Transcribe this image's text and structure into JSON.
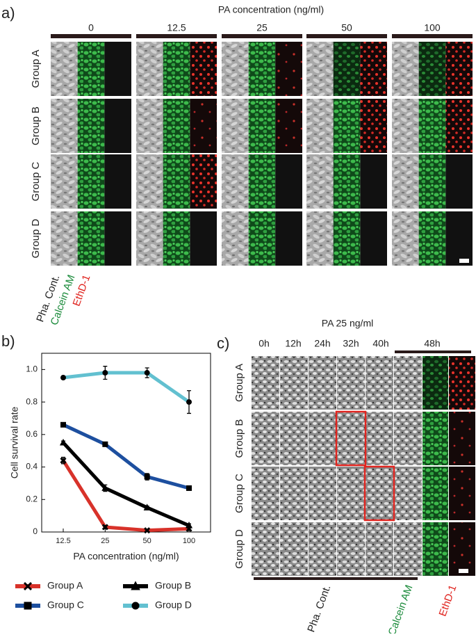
{
  "panel_a": {
    "label": "a)",
    "title": "PA concentration (ng/ml)",
    "columns": [
      "0",
      "12.5",
      "25",
      "50",
      "100"
    ],
    "rows": [
      "Group A",
      "Group B",
      "Group C",
      "Group D"
    ],
    "channels": [
      "Pha. Cont.",
      "Calcein AM",
      "EthD-1"
    ]
  },
  "chart_data": {
    "type": "line",
    "panel_label": "b)",
    "x_label": "PA concentration (ng/ml)",
    "y_label": "Cell survival rate",
    "categories": [
      "12.5",
      "25",
      "50",
      "100"
    ],
    "ylim": [
      0,
      1.1
    ],
    "yticks": [
      0,
      0.2,
      0.4,
      0.6,
      0.8,
      {
        "value": 1,
        "label": "1.0"
      }
    ],
    "series": [
      {
        "name": "Group A",
        "color": "#d8322a",
        "marker": "x",
        "values": [
          0.44,
          0.03,
          0.01,
          0.02
        ],
        "errors": [
          0.02,
          0.01,
          0.005,
          0.01
        ]
      },
      {
        "name": "Group B",
        "color": "#000000",
        "marker": "triangle",
        "values": [
          0.55,
          0.27,
          0.15,
          0.04
        ],
        "errors": [
          0.01,
          0.02,
          0.01,
          0.01
        ]
      },
      {
        "name": "Group C",
        "color": "#1d4f9f",
        "marker": "square",
        "values": [
          0.66,
          0.54,
          0.34,
          0.27
        ],
        "errors": [
          0.01,
          0.01,
          0.02,
          0.01
        ]
      },
      {
        "name": "Group D",
        "color": "#62c0d0",
        "marker": "circle",
        "values": [
          0.95,
          0.98,
          0.98,
          0.8
        ],
        "errors": [
          0.01,
          0.04,
          0.03,
          0.07
        ]
      }
    ]
  },
  "panel_c": {
    "label": "c)",
    "title": "PA 25 ng/ml",
    "times": [
      "0h",
      "12h",
      "24h",
      "32h",
      "40h",
      "48h"
    ],
    "rows": [
      "Group A",
      "Group B",
      "Group C",
      "Group D"
    ],
    "channels": [
      "Pha. Cont.",
      "Calcein AM",
      "EthD-1"
    ]
  }
}
